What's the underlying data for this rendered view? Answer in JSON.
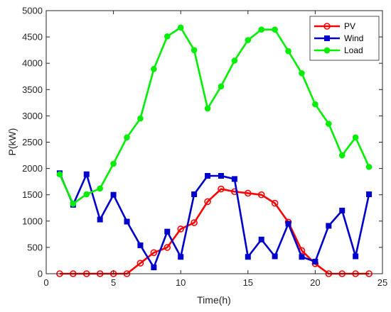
{
  "chart_data": {
    "type": "line",
    "xlabel": "Time(h)",
    "ylabel": "P(kW)",
    "xlim": [
      0,
      25
    ],
    "ylim": [
      0,
      5000
    ],
    "xticks": [
      0,
      5,
      10,
      15,
      20,
      25
    ],
    "yticks": [
      0,
      500,
      1000,
      1500,
      2000,
      2500,
      3000,
      3500,
      4000,
      4500,
      5000
    ],
    "x": [
      1,
      2,
      3,
      4,
      5,
      6,
      7,
      8,
      9,
      10,
      11,
      12,
      13,
      14,
      15,
      16,
      17,
      18,
      19,
      20,
      21,
      22,
      23,
      24
    ],
    "grid": false,
    "legend_position": "top-right",
    "series": [
      {
        "name": "PV",
        "color": "#ff0000",
        "marker": "circle",
        "values": [
          0,
          0,
          0,
          0,
          0,
          0,
          200,
          400,
          500,
          850,
          970,
          1370,
          1610,
          1560,
          1530,
          1500,
          1340,
          980,
          440,
          190,
          0,
          0,
          0,
          0
        ]
      },
      {
        "name": "Wind",
        "color": "#0000cc",
        "marker": "square",
        "values": [
          1910,
          1310,
          1890,
          1030,
          1500,
          990,
          540,
          120,
          800,
          320,
          1510,
          1860,
          1860,
          1800,
          320,
          650,
          330,
          950,
          320,
          230,
          910,
          1200,
          330,
          1510
        ]
      },
      {
        "name": "Load",
        "color": "#00ee00",
        "marker": "circle-filled",
        "values": [
          1890,
          1330,
          1510,
          1620,
          2090,
          2590,
          2950,
          3890,
          4510,
          4680,
          4250,
          3140,
          3560,
          4050,
          4440,
          4640,
          4640,
          4230,
          3810,
          3220,
          2850,
          2250,
          2590,
          2030
        ]
      }
    ]
  }
}
